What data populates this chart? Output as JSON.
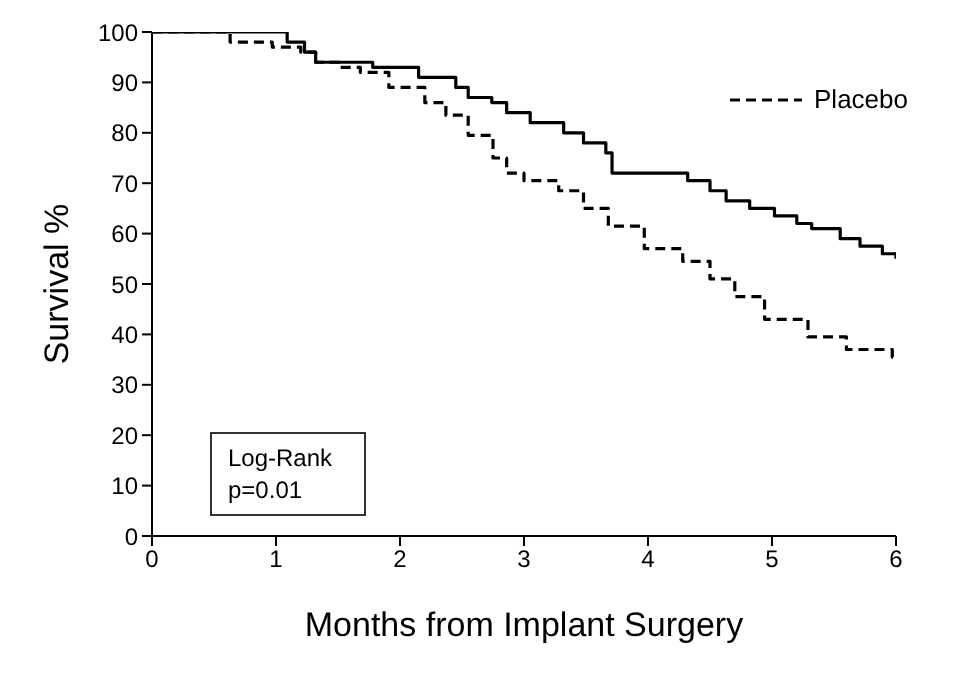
{
  "chart_data": {
    "type": "step",
    "xlabel": "Months from Implant Surgery",
    "ylabel": "Survival %",
    "xlim": [
      0,
      6
    ],
    "xticks": [
      0,
      1,
      2,
      3,
      4,
      5,
      6
    ],
    "ylim": [
      0,
      100
    ],
    "yticks": [
      0,
      10,
      20,
      30,
      40,
      50,
      60,
      70,
      80,
      90,
      100
    ],
    "legend": "top right",
    "annotations": [
      "Log-Rank\np=0.01"
    ],
    "series": [
      {
        "color": "#000000",
        "line_style": "solid",
        "x": [
          0,
          1.09,
          1.23,
          1.32,
          1.37,
          1.78,
          2.15,
          2.45,
          2.55,
          2.74,
          2.86,
          3.05,
          3.32,
          3.48,
          3.66,
          3.71,
          4.32,
          4.5,
          4.63,
          4.82,
          5.02,
          5.2,
          5.32,
          5.55,
          5.71,
          5.89,
          6
        ],
        "values": [
          100,
          98,
          96,
          94,
          94,
          93,
          91,
          89,
          87,
          86,
          84,
          82,
          80,
          78,
          76,
          72,
          70.5,
          68.5,
          66.5,
          65,
          63.5,
          62,
          61,
          59,
          57.5,
          56,
          55
        ]
      },
      {
        "name": "Placebo",
        "color": "#000000",
        "line_style": "dashed",
        "x": [
          0,
          0.63,
          0.97,
          1.2,
          1.32,
          1.52,
          1.68,
          1.91,
          2.2,
          2.37,
          2.55,
          2.75,
          2.86,
          3.0,
          3.28,
          3.48,
          3.68,
          3.97,
          4.28,
          4.5,
          4.7,
          4.94,
          5.29,
          5.6,
          5.97,
          6
        ],
        "values": [
          100,
          98,
          97,
          96,
          94,
          93,
          92,
          89,
          86,
          83.5,
          79.5,
          75,
          72,
          70.5,
          68.5,
          65,
          61.5,
          57,
          54.5,
          51,
          47.5,
          43,
          39.5,
          37,
          35.5,
          35.5
        ]
      }
    ]
  }
}
